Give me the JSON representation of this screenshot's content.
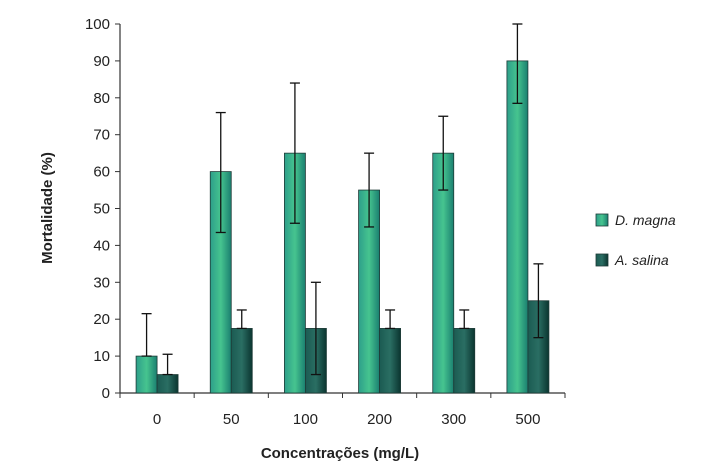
{
  "chart_data": {
    "type": "bar",
    "title": "",
    "xlabel": "Concentrações (mg/L)",
    "ylabel": "Mortalidade (%)",
    "ylim": [
      0,
      100
    ],
    "y_ticks": [
      "0",
      "10",
      "20",
      "30",
      "40",
      "50",
      "60",
      "70",
      "80",
      "90",
      "100"
    ],
    "categories": [
      "0",
      "50",
      "100",
      "200",
      "300",
      "500"
    ],
    "series": [
      {
        "name": "D. magna",
        "color": "#1f8a78",
        "values": [
          10,
          60,
          65,
          55,
          65,
          90
        ],
        "error_high": [
          21.5,
          76,
          84,
          65,
          75,
          100
        ],
        "error_low": [
          10,
          43.5,
          46,
          45,
          55,
          78.5
        ]
      },
      {
        "name": "A. salina",
        "color": "#0f3f3a",
        "values": [
          5,
          17.5,
          17.5,
          17.5,
          17.5,
          25
        ],
        "error_high": [
          10.5,
          22.5,
          30,
          22.5,
          22.5,
          35
        ],
        "error_low": [
          5,
          17.5,
          5,
          17.5,
          17.5,
          15
        ]
      }
    ],
    "legend_position": "right",
    "grid": false
  }
}
